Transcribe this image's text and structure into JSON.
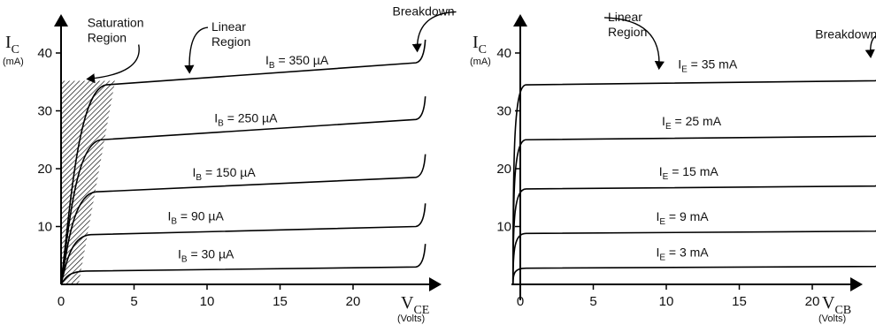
{
  "chart_data": [
    {
      "type": "line",
      "title": "",
      "xlabel_main": "V",
      "xlabel_sub": "CE",
      "xlabel_unit": "(Volts)",
      "ylabel_main": "I",
      "ylabel_sub": "C",
      "ylabel_unit": "(mA)",
      "xlim": [
        0,
        25
      ],
      "ylim": [
        0,
        45
      ],
      "xticks": [
        0,
        5,
        10,
        15,
        20
      ],
      "yticks": [
        10,
        20,
        30,
        40
      ],
      "grid": false,
      "series": [
        {
          "name": "I_B = 30 µA",
          "label_main": "I",
          "label_sub": "B",
          "label_rest": " = 30 µA",
          "sat_current": 2.3,
          "end_current": 3.0,
          "label_at": [
            8.0,
            4.5
          ]
        },
        {
          "name": "I_B = 90 µA",
          "label_main": "I",
          "label_sub": "B",
          "label_rest": " = 90 µA",
          "sat_current": 8.6,
          "end_current": 10.0,
          "label_at": [
            7.3,
            11.1
          ]
        },
        {
          "name": "I_B = 150 µA",
          "label_main": "I",
          "label_sub": "B",
          "label_rest": " = 150 µA",
          "sat_current": 16.0,
          "end_current": 18.5,
          "label_at": [
            9.0,
            18.6
          ]
        },
        {
          "name": "I_B = 250 µA",
          "label_main": "I",
          "label_sub": "B",
          "label_rest": " = 250 µA",
          "sat_current": 25.0,
          "end_current": 28.5,
          "label_at": [
            10.5,
            28.0
          ]
        },
        {
          "name": "I_B = 350 µA",
          "label_main": "I",
          "label_sub": "B",
          "label_rest": " = 350 µA",
          "sat_current": 34.5,
          "end_current": 38.3,
          "label_at": [
            14.0,
            38.0
          ]
        }
      ],
      "annotations": [
        {
          "text": [
            "Saturation",
            "Region"
          ],
          "at": [
            1.8,
            44.5
          ],
          "arrow_to": [
            1.8,
            35.5
          ]
        },
        {
          "text": [
            "Linear",
            "Region"
          ],
          "at": [
            10.3,
            43.8
          ],
          "arrow_to": [
            8.8,
            36.6
          ]
        },
        {
          "text": [
            "Breakdown"
          ],
          "at": [
            22.7,
            46.5
          ],
          "arrow_to": [
            24.4,
            40.3
          ]
        }
      ],
      "shaded_region": "Saturation Region"
    },
    {
      "type": "line",
      "title": "",
      "xlabel_main": "V",
      "xlabel_sub": "CB",
      "xlabel_unit": "(Volts)",
      "ylabel_main": "I",
      "ylabel_sub": "C",
      "ylabel_unit": "(mA)",
      "xlim": [
        -1,
        25
      ],
      "ylim": [
        0,
        45
      ],
      "xticks": [
        0,
        5,
        10,
        15,
        20
      ],
      "yticks": [
        10,
        20,
        30,
        40
      ],
      "grid": false,
      "series": [
        {
          "name": "I_E = 3 mA",
          "label_main": "I",
          "label_sub": "E",
          "label_rest": " = 3 mA",
          "sat_current": 2.8,
          "end_current": 3.1,
          "label_at": [
            9.3,
            4.8
          ]
        },
        {
          "name": "I_E = 9 mA",
          "label_main": "I",
          "label_sub": "E",
          "label_rest": " = 9 mA",
          "sat_current": 8.8,
          "end_current": 9.2,
          "label_at": [
            9.3,
            11.0
          ]
        },
        {
          "name": "I_E = 15 mA",
          "label_main": "I",
          "label_sub": "E",
          "label_rest": " = 15 mA",
          "sat_current": 16.5,
          "end_current": 17.0,
          "label_at": [
            9.5,
            18.8
          ]
        },
        {
          "name": "I_E = 25 mA",
          "label_main": "I",
          "label_sub": "E",
          "label_rest": " = 25 mA",
          "sat_current": 25.0,
          "end_current": 25.6,
          "label_at": [
            9.7,
            27.5
          ]
        },
        {
          "name": "I_E = 35 mA",
          "label_main": "I",
          "label_sub": "E",
          "label_rest": " = 35 mA",
          "sat_current": 34.5,
          "end_current": 35.2,
          "label_at": [
            10.8,
            37.3
          ]
        }
      ],
      "annotations": [
        {
          "text": [
            "Linear",
            "Region"
          ],
          "at": [
            6.0,
            45.5
          ],
          "arrow_to": [
            9.5,
            37.3
          ]
        },
        {
          "text": [
            "Breakdown"
          ],
          "at": [
            20.2,
            42.5
          ],
          "arrow_to": [
            24.0,
            39.3
          ]
        }
      ]
    }
  ]
}
